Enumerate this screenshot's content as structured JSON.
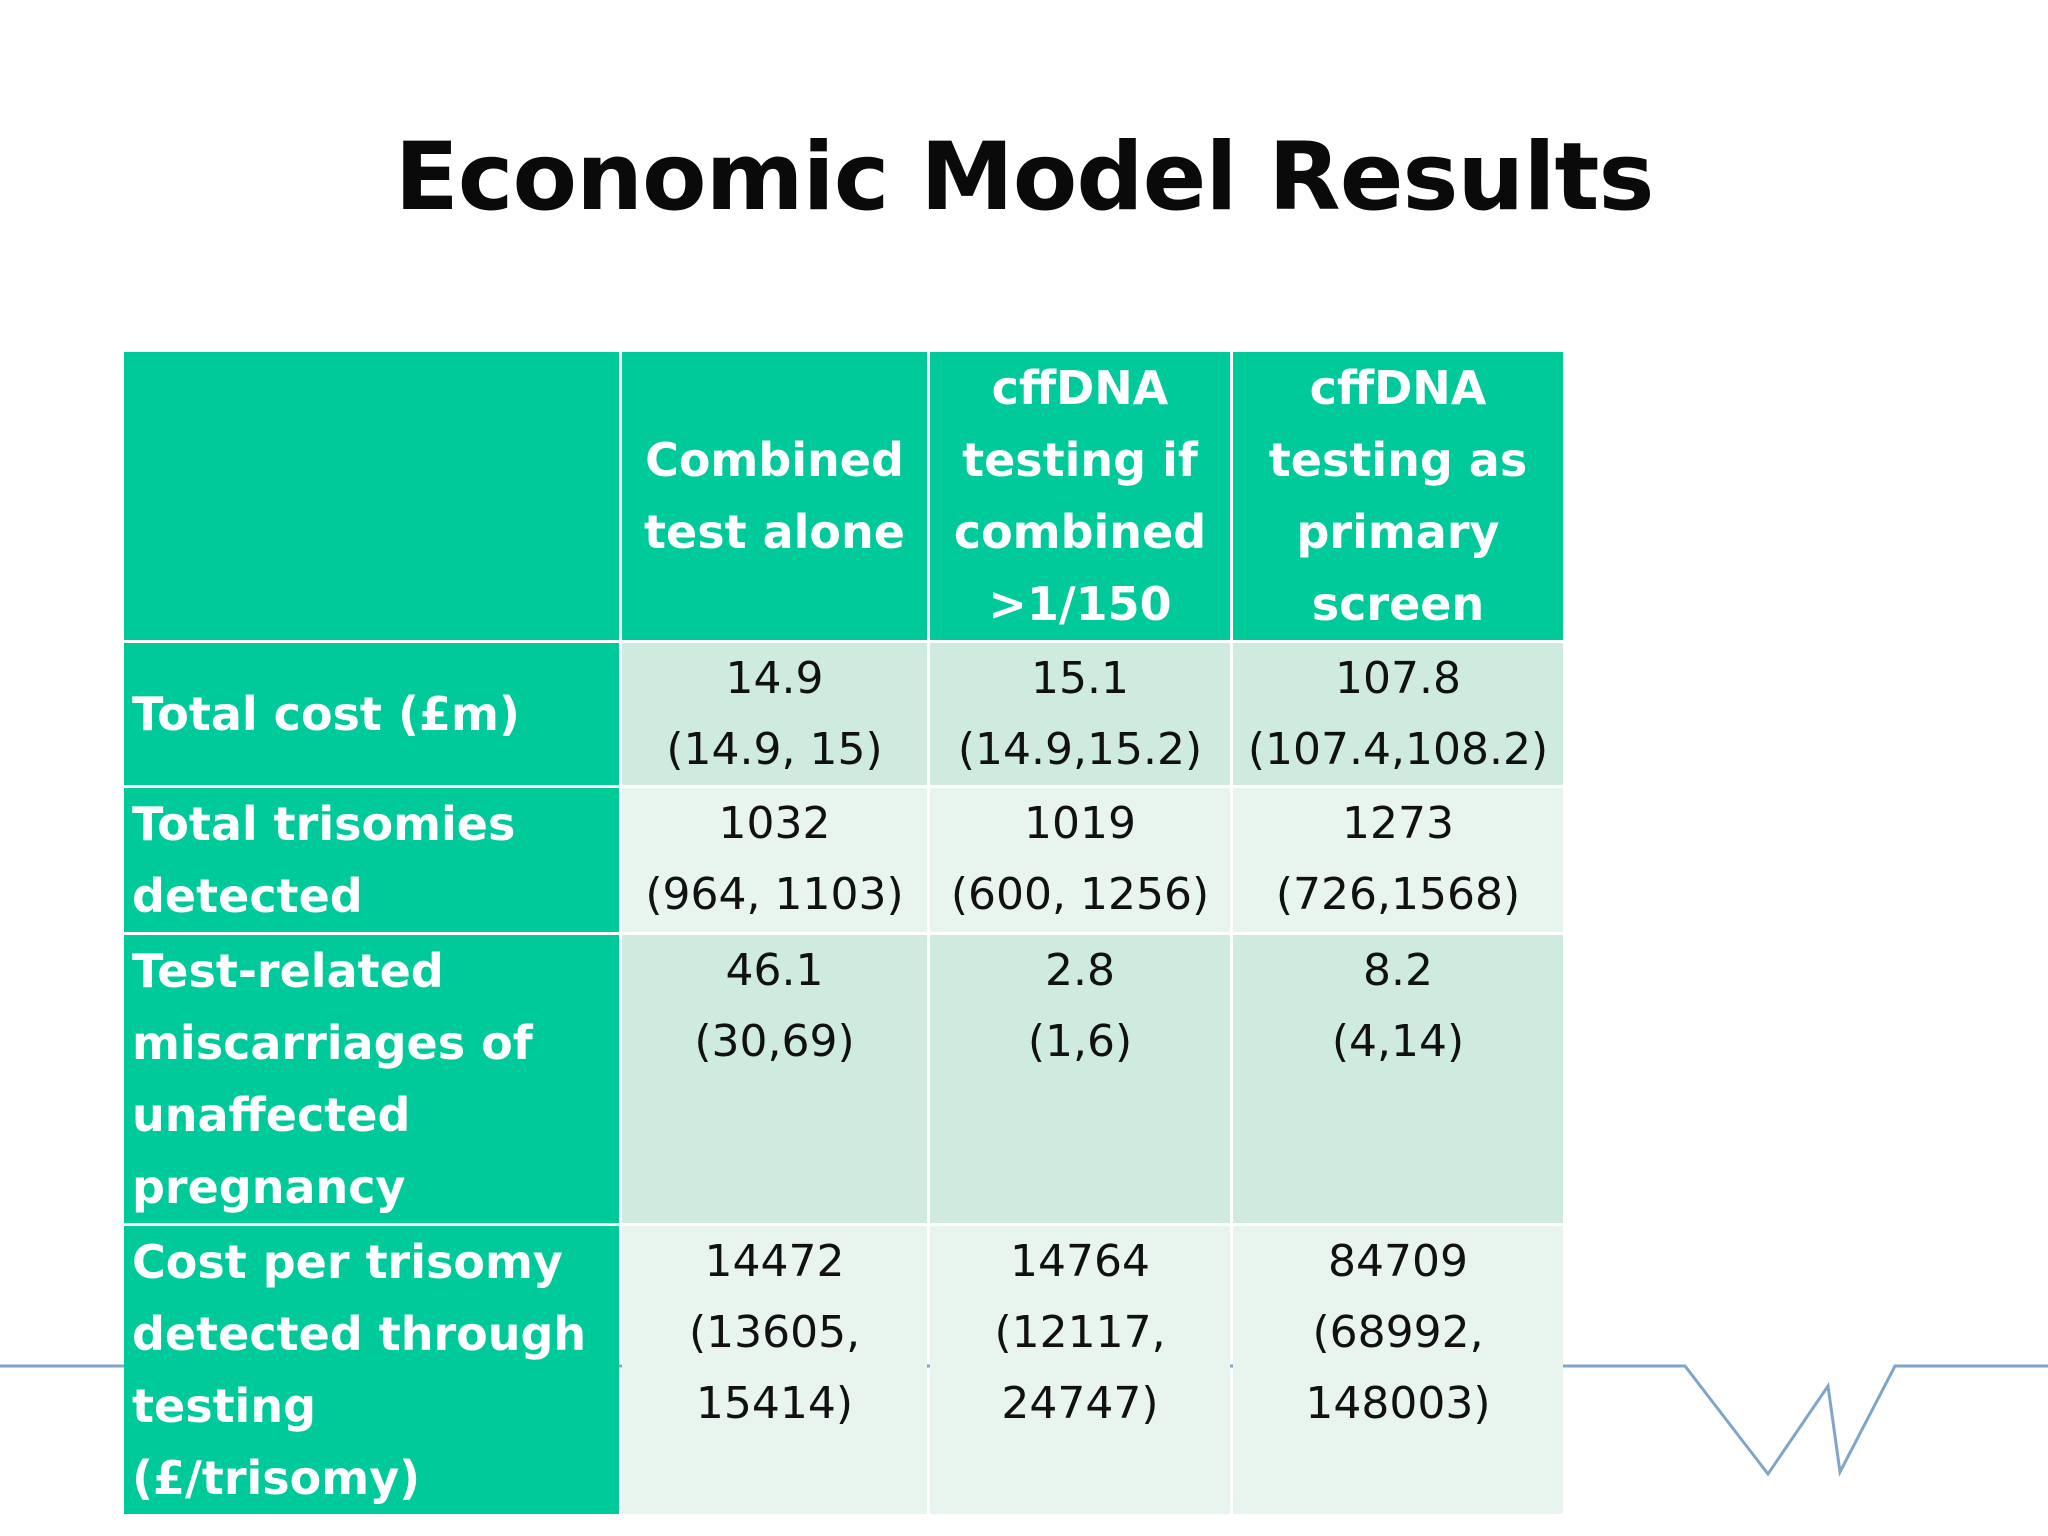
{
  "title": "Economic Model Results",
  "table": {
    "columns": [
      "",
      "Combined test alone",
      "cffDNA testing if combined >1/150",
      "cffDNA testing as primary screen"
    ],
    "header_lines": [
      [],
      [
        "Combined",
        "test alone"
      ],
      [
        "cffDNA",
        "testing if",
        "combined",
        ">1/150"
      ],
      [
        "cffDNA",
        "testing as",
        "primary",
        "screen"
      ]
    ],
    "rows": [
      {
        "label": "Total cost (£m)",
        "cells": [
          {
            "value": "14.9",
            "ci": "(14.9, 15)"
          },
          {
            "value": "15.1",
            "ci": "(14.9,15.2)"
          },
          {
            "value": "107.8",
            "ci": "(107.4,108.2)"
          }
        ]
      },
      {
        "label": "Total trisomies detected",
        "cells": [
          {
            "value": "1032",
            "ci": "(964, 1103)"
          },
          {
            "value": "1019",
            "ci": "(600, 1256)"
          },
          {
            "value": "1273",
            "ci": "(726,1568)"
          }
        ]
      },
      {
        "label": "Test-related miscarriages  of unaffected pregnancy",
        "cells": [
          {
            "value": "46.1",
            "ci": "(30,69)"
          },
          {
            "value": "2.8",
            "ci": "(1,6)"
          },
          {
            "value": "8.2",
            "ci": "(4,14)"
          }
        ]
      },
      {
        "label": "Cost per trisomy detected through testing (£/trisomy)",
        "cells": [
          {
            "value": "14472",
            "ci": "(13605,",
            "ci2": "15414)"
          },
          {
            "value": "14764",
            "ci": "(12117,",
            "ci2": "24747)"
          },
          {
            "value": "84709",
            "ci": "(68992,",
            "ci2": "148003)"
          }
        ]
      }
    ]
  },
  "colors": {
    "header_bg": "#00c99a",
    "cell_dark": "#cfeadf",
    "cell_light": "#e8f5ef",
    "deco_line": "#7fa6c8"
  }
}
